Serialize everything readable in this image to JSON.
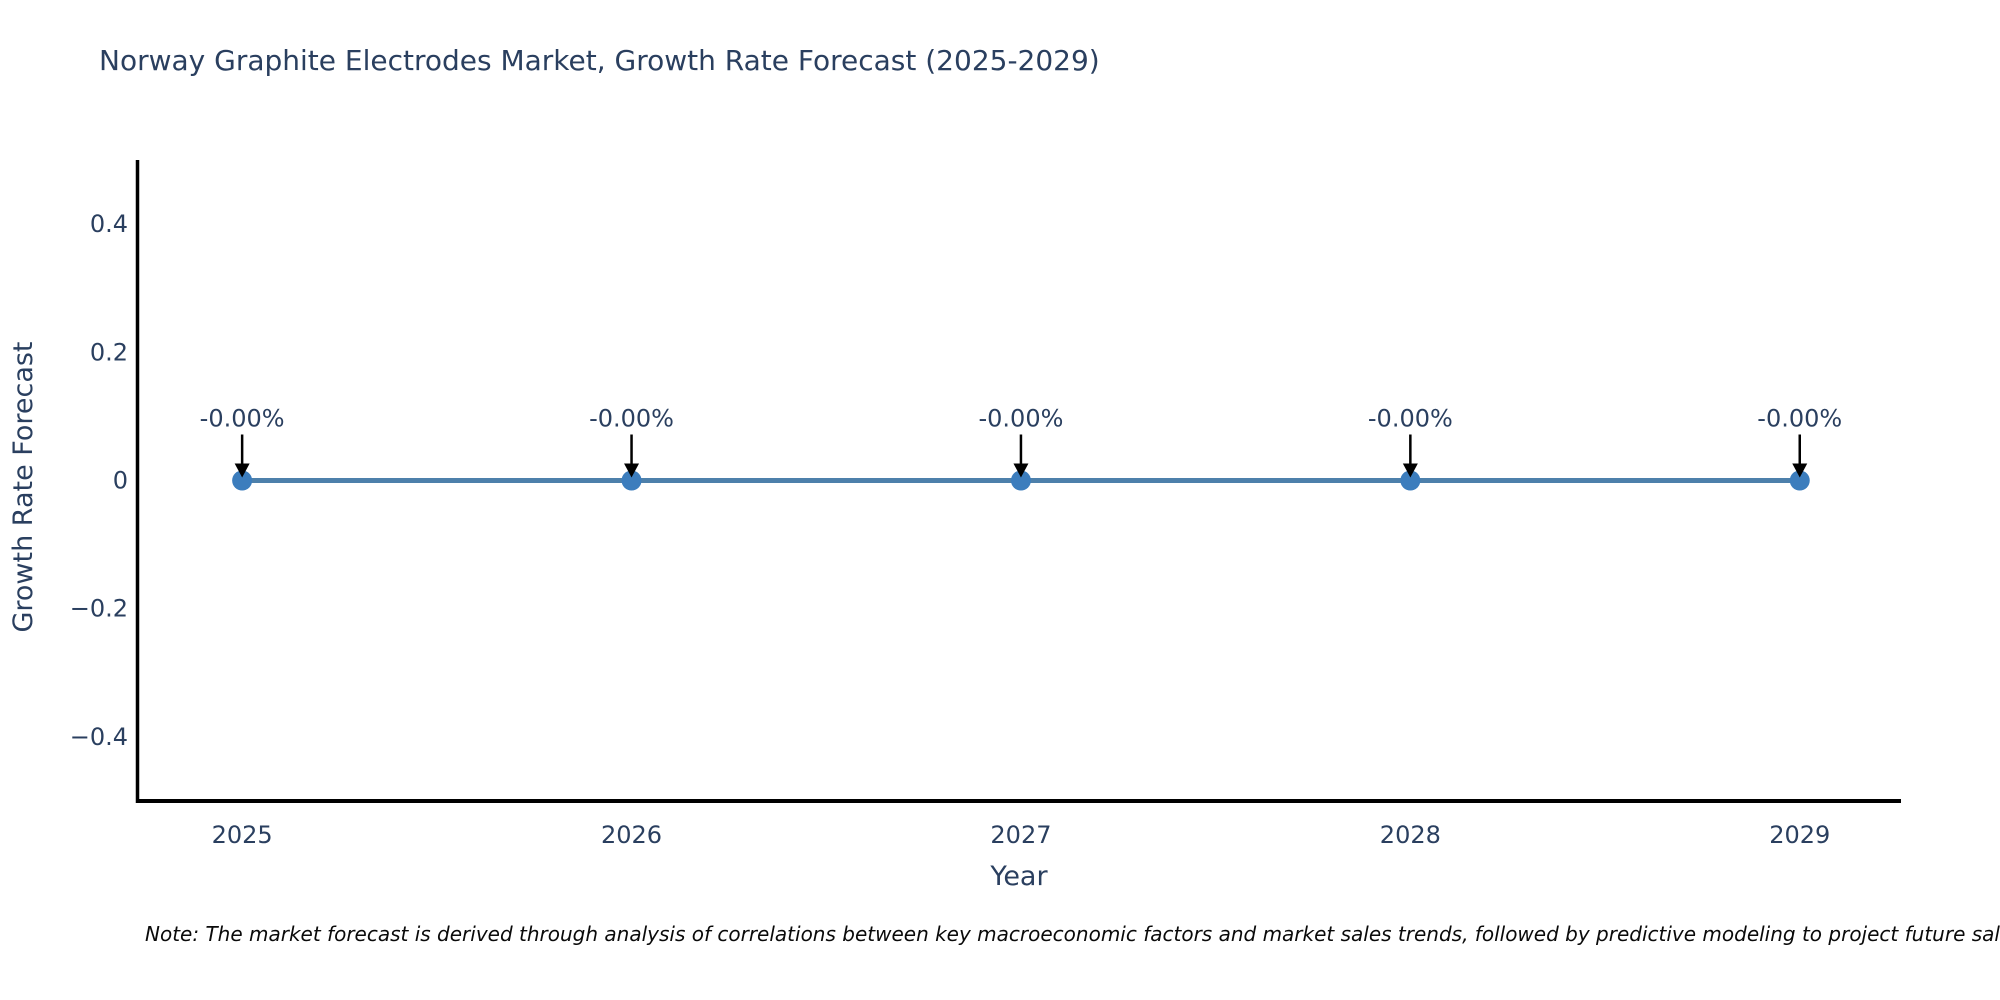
{
  "title": "Norway Graphite Electrodes Market, Growth Rate Forecast (2025-2029)",
  "note": "Note: The market forecast is derived through analysis of correlations between key macroeconomic factors and market sales trends, followed by predictive modeling to project future sales",
  "chart_data": {
    "type": "line",
    "title": "Norway Graphite Electrodes Market, Growth Rate Forecast (2025-2029)",
    "xlabel": "Year",
    "ylabel": "Growth Rate Forecast",
    "x": [
      2025,
      2026,
      2027,
      2028,
      2029
    ],
    "series": [
      {
        "name": "Growth Rate Forecast",
        "values": [
          0,
          0,
          0,
          0,
          0
        ],
        "point_labels": [
          "-0.00%",
          "-0.00%",
          "-0.00%",
          "-0.00%",
          "-0.00%"
        ]
      }
    ],
    "x_tick_labels": [
      "2025",
      "2026",
      "2027",
      "2028",
      "2029"
    ],
    "y_ticks": [
      {
        "value": 0.4,
        "label": "0.4"
      },
      {
        "value": 0.2,
        "label": "0.2"
      },
      {
        "value": 0,
        "label": "0"
      },
      {
        "value": -0.2,
        "label": "−0.2"
      },
      {
        "value": -0.4,
        "label": "−0.4"
      }
    ],
    "xlim": [
      2024.73,
      2029.26
    ],
    "ylim": [
      -0.5,
      0.5
    ],
    "grid": false,
    "legend": "none",
    "colors": {
      "line": "#4d80ab",
      "marker": "#3c7dbd",
      "axis": "#000000",
      "text": "#2a3f5f",
      "arrow": "#000000",
      "title": "#2a3f5f"
    }
  }
}
